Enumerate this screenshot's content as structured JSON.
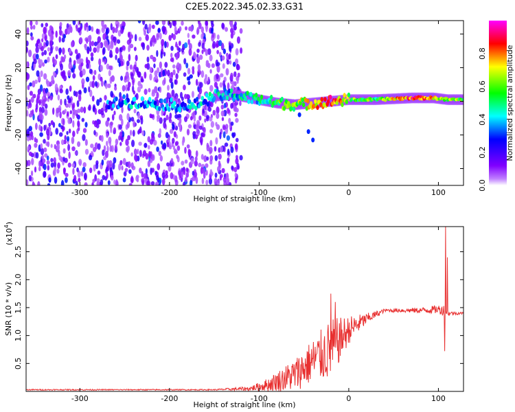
{
  "figure": {
    "title": "C2E5.2022.345.02.33.G31"
  },
  "chart_data": [
    {
      "type": "heatmap",
      "xlabel": "Height of straight line (km)",
      "ylabel": "Frequency (Hz)",
      "xlim": [
        -360,
        128
      ],
      "ylim": [
        -50,
        48
      ],
      "x_ticks": [
        -300,
        -200,
        -100,
        0,
        100
      ],
      "y_ticks": [
        -40,
        -20,
        0,
        20,
        40
      ],
      "colorbar": {
        "label": "Normalized spectral amplitude",
        "range": [
          0,
          1
        ],
        "ticks": [
          0.0,
          0.2,
          0.4,
          0.6,
          0.8
        ],
        "colors": [
          "#ffffff",
          "#8000ff",
          "#0000ff",
          "#00ffff",
          "#00ff00",
          "#ffff00",
          "#ff0000",
          "#ff00ff"
        ]
      },
      "features": {
        "noise_region_x": [
          -360,
          -120
        ],
        "noise_amplitude_range": [
          0.05,
          0.35
        ],
        "signal_band": [
          {
            "x": -265,
            "y": -2,
            "amp": 0.3
          },
          {
            "x": -250,
            "y": 0,
            "amp": 0.35
          },
          {
            "x": -175,
            "y": -3,
            "amp": 0.35
          },
          {
            "x": -150,
            "y": 3,
            "amp": 0.4
          },
          {
            "x": -130,
            "y": 4,
            "amp": 0.4
          },
          {
            "x": -100,
            "y": 1,
            "amp": 0.45
          },
          {
            "x": -80,
            "y": -1,
            "amp": 0.55
          },
          {
            "x": -60,
            "y": -2,
            "amp": 0.6
          },
          {
            "x": -40,
            "y": -1,
            "amp": 0.7
          },
          {
            "x": -20,
            "y": 0,
            "amp": 0.85
          },
          {
            "x": 0,
            "y": 1,
            "amp": 0.6
          },
          {
            "x": 30,
            "y": 1,
            "amp": 0.55
          },
          {
            "x": 70,
            "y": 2,
            "amp": 0.85
          },
          {
            "x": 95,
            "y": 2,
            "amp": 0.75
          },
          {
            "x": 110,
            "y": 1,
            "amp": 0.6
          },
          {
            "x": 128,
            "y": 1,
            "amp": 0.6
          }
        ],
        "tail": [
          {
            "x": -55,
            "y": -8
          },
          {
            "x": -45,
            "y": -18
          },
          {
            "x": -40,
            "y": -23
          }
        ]
      }
    },
    {
      "type": "line",
      "xlabel": "Height of straight line (km)",
      "ylabel": "SNR (10 * v/v)",
      "scale_label": "(x10",
      "scale_exponent": "4",
      "scale_suffix": ")",
      "xlim": [
        -360,
        128
      ],
      "ylim": [
        0,
        2.95
      ],
      "x_ticks": [
        -300,
        -200,
        -100,
        0,
        100
      ],
      "y_ticks": [
        0.5,
        1.0,
        1.5,
        2.0,
        2.5
      ],
      "color": "#e83030",
      "envelope": [
        {
          "x": -360,
          "base": 0.03,
          "noise": 0.01
        },
        {
          "x": -150,
          "base": 0.03,
          "noise": 0.01
        },
        {
          "x": -110,
          "base": 0.05,
          "noise": 0.04
        },
        {
          "x": -90,
          "base": 0.12,
          "noise": 0.12
        },
        {
          "x": -60,
          "base": 0.3,
          "noise": 0.3
        },
        {
          "x": -40,
          "base": 0.55,
          "noise": 0.4
        },
        {
          "x": -20,
          "base": 0.75,
          "noise": 0.55
        },
        {
          "x": 0,
          "base": 1.1,
          "noise": 0.25
        },
        {
          "x": 20,
          "base": 1.3,
          "noise": 0.1
        },
        {
          "x": 40,
          "base": 1.45,
          "noise": 0.03
        },
        {
          "x": 80,
          "base": 1.45,
          "noise": 0.05
        },
        {
          "x": 100,
          "base": 1.47,
          "noise": 0.08
        },
        {
          "x": 106,
          "base": 1.45,
          "noise": 0.1
        },
        {
          "x": 112,
          "base": 1.4,
          "noise": 0.04
        },
        {
          "x": 128,
          "base": 1.4,
          "noise": 0.02
        }
      ],
      "spikes": [
        {
          "x": -20,
          "y": 1.75
        },
        {
          "x": -15,
          "y": 1.6
        },
        {
          "x": 107,
          "y": 0.72
        },
        {
          "x": 108,
          "y": 2.95
        },
        {
          "x": 110,
          "y": 2.4
        }
      ]
    }
  ]
}
